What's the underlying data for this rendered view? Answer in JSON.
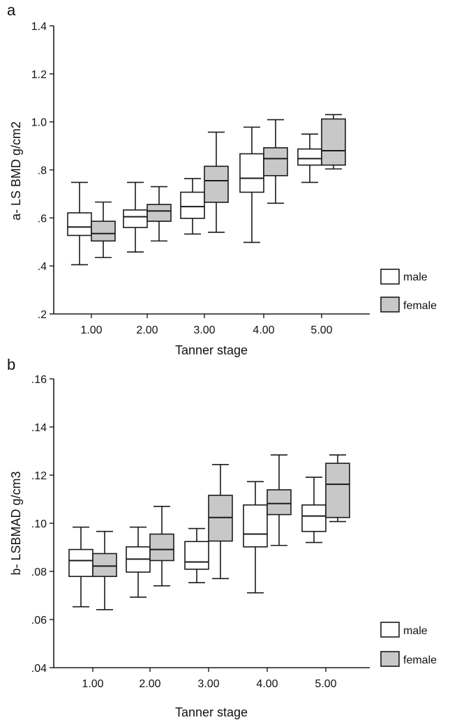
{
  "colors": {
    "male": "#ffffff",
    "female": "#c8c8c8",
    "stroke": "#1a1a1a"
  },
  "chart_data": [
    {
      "type": "boxplot",
      "panel_label": "a",
      "title": "",
      "xlabel": "Tanner stage",
      "ylabel": "a- LS BMD g/cm2",
      "categories": [
        "1.00",
        "2.00",
        "3.00",
        "4.00",
        "5.00"
      ],
      "ylim": [
        0.2,
        1.4
      ],
      "yticks": [
        0.2,
        0.4,
        0.6,
        0.8,
        1.0,
        1.2,
        1.4
      ],
      "ytick_labels": [
        ".2",
        ".4",
        ".6",
        ".8",
        "1.0",
        "1.2",
        "1.4"
      ],
      "grid": false,
      "legend": "right",
      "series": [
        {
          "name": "male",
          "boxes": [
            {
              "min": 0.405,
              "q1": 0.527,
              "median": 0.562,
              "q3": 0.621,
              "max": 0.748
            },
            {
              "min": 0.458,
              "q1": 0.56,
              "median": 0.605,
              "q3": 0.633,
              "max": 0.748
            },
            {
              "min": 0.533,
              "q1": 0.598,
              "median": 0.647,
              "q3": 0.707,
              "max": 0.764
            },
            {
              "min": 0.498,
              "q1": 0.707,
              "median": 0.765,
              "q3": 0.867,
              "max": 0.978
            },
            {
              "min": 0.748,
              "q1": 0.82,
              "median": 0.847,
              "q3": 0.887,
              "max": 0.949
            }
          ]
        },
        {
          "name": "female",
          "boxes": [
            {
              "min": 0.435,
              "q1": 0.504,
              "median": 0.535,
              "q3": 0.586,
              "max": 0.666
            },
            {
              "min": 0.504,
              "q1": 0.586,
              "median": 0.629,
              "q3": 0.656,
              "max": 0.73
            },
            {
              "min": 0.54,
              "q1": 0.665,
              "median": 0.755,
              "q3": 0.815,
              "max": 0.957
            },
            {
              "min": 0.661,
              "q1": 0.776,
              "median": 0.847,
              "q3": 0.892,
              "max": 1.009
            },
            {
              "min": 0.804,
              "q1": 0.82,
              "median": 0.88,
              "q3": 1.012,
              "max": 1.03
            }
          ]
        }
      ]
    },
    {
      "type": "boxplot",
      "panel_label": "b",
      "title": "",
      "xlabel": "Tanner stage",
      "ylabel": "b- LSBMAD g/cm3",
      "categories": [
        "1.00",
        "2.00",
        "3.00",
        "4.00",
        "5.00"
      ],
      "ylim": [
        0.04,
        0.16
      ],
      "yticks": [
        0.04,
        0.06,
        0.08,
        0.1,
        0.12,
        0.14,
        0.16
      ],
      "ytick_labels": [
        ".04",
        ".06",
        ".08",
        ".10",
        ".12",
        ".14",
        ".16"
      ],
      "grid": false,
      "legend": "right",
      "series": [
        {
          "name": "male",
          "boxes": [
            {
              "min": 0.0653,
              "q1": 0.0779,
              "median": 0.0845,
              "q3": 0.0891,
              "max": 0.0984
            },
            {
              "min": 0.0693,
              "q1": 0.0797,
              "median": 0.0851,
              "q3": 0.0902,
              "max": 0.0984
            },
            {
              "min": 0.0753,
              "q1": 0.0809,
              "median": 0.0839,
              "q3": 0.0924,
              "max": 0.0978
            },
            {
              "min": 0.0711,
              "q1": 0.0902,
              "median": 0.0955,
              "q3": 0.1076,
              "max": 0.1173
            },
            {
              "min": 0.092,
              "q1": 0.0966,
              "median": 0.103,
              "q3": 0.1076,
              "max": 0.1191
            }
          ]
        },
        {
          "name": "female",
          "boxes": [
            {
              "min": 0.0641,
              "q1": 0.0779,
              "median": 0.0822,
              "q3": 0.0874,
              "max": 0.0966
            },
            {
              "min": 0.074,
              "q1": 0.0845,
              "median": 0.0891,
              "q3": 0.0955,
              "max": 0.107
            },
            {
              "min": 0.077,
              "q1": 0.0926,
              "median": 0.1024,
              "q3": 0.1116,
              "max": 0.1244
            },
            {
              "min": 0.0908,
              "q1": 0.1036,
              "median": 0.1082,
              "q3": 0.1139,
              "max": 0.1284
            },
            {
              "min": 0.1007,
              "q1": 0.1024,
              "median": 0.1162,
              "q3": 0.1249,
              "max": 0.1284
            }
          ]
        }
      ]
    }
  ]
}
